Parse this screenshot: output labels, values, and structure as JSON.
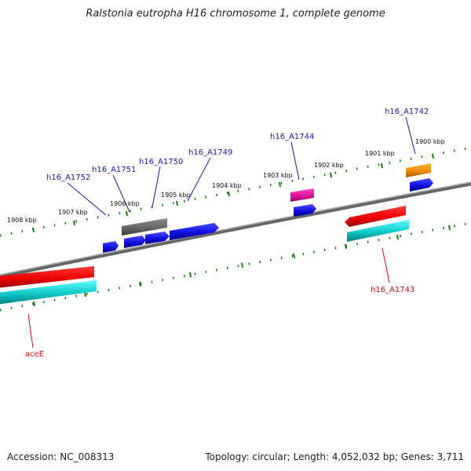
{
  "title": "Ralstonia eutropha H16 chromosome 1, complete genome",
  "footer": {
    "accession": "Accession: NC_008313",
    "summary": "Topology: circular; Length: 4,052,032 bp; Genes: 3,711"
  },
  "ruler_labels": [
    "1908 kbp",
    "1907 kbp",
    "1906 kbp",
    "1905 kbp",
    "1904 kbp",
    "1903 kbp",
    "1902 kbp",
    "1901 kbp",
    "1900 kbp"
  ],
  "gene_labels": {
    "h16_A1742": "h16_A1742",
    "h16_A1743": "h16_A1743",
    "h16_A1744": "h16_A1744",
    "h16_A1749": "h16_A1749",
    "h16_A1750": "h16_A1750",
    "h16_A1751": "h16_A1751",
    "h16_A1752": "h16_A1752",
    "aceE": "aceE"
  },
  "colors": {
    "backbone": "#888888",
    "tick": "#1a7a1a",
    "blue": "#1010e0",
    "red": "#ee0000",
    "cyan": "#10c8c8",
    "magenta": "#e0109a",
    "orange": "#f08c00",
    "gray": "#666666",
    "label_blue": "#1a1aaa",
    "label_red": "#cc1111"
  }
}
